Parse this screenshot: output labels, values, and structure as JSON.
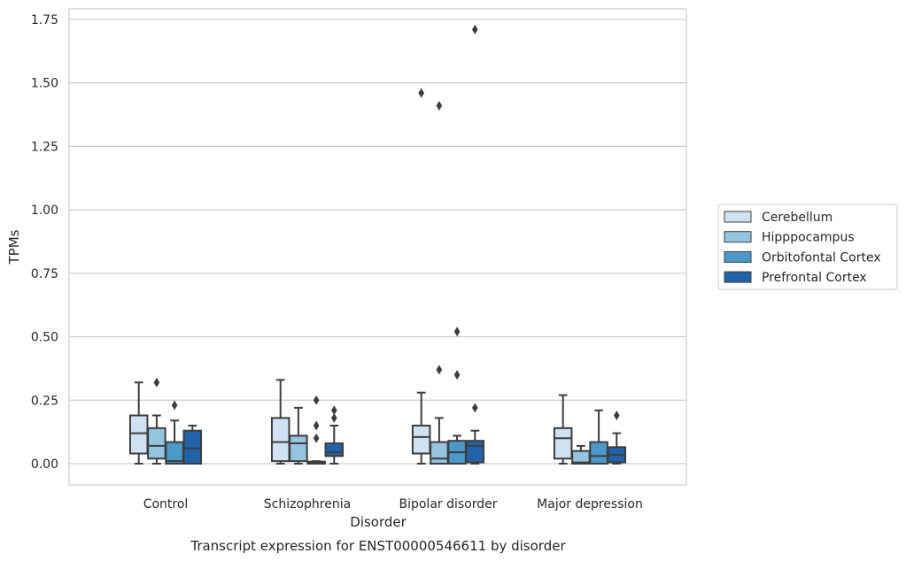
{
  "caption": "Transcript expression for ENST00000546611 by disorder",
  "chart_data": {
    "type": "box",
    "title": "",
    "xlabel": "Disorder",
    "ylabel": "TPMs",
    "categories": [
      "Control",
      "Schizophrenia",
      "Bipolar disorder",
      "Major depression"
    ],
    "ylim": [
      -0.085,
      1.8
    ],
    "yticks": [
      0.0,
      0.25,
      0.5,
      0.75,
      1.0,
      1.25,
      1.5,
      1.75
    ],
    "ytick_labels": [
      "0.00",
      "0.25",
      "0.50",
      "0.75",
      "1.00",
      "1.25",
      "1.50",
      "1.75"
    ],
    "grid": true,
    "legend_position": "right",
    "series": [
      {
        "name": "Cerebellum",
        "color": "#d0e1f2",
        "boxes": [
          {
            "whislo": 0.0,
            "q1": 0.04,
            "med": 0.12,
            "q3": 0.19,
            "whishi": 0.32,
            "fliers": []
          },
          {
            "whislo": 0.0,
            "q1": 0.01,
            "med": 0.085,
            "q3": 0.18,
            "whishi": 0.33,
            "fliers": []
          },
          {
            "whislo": 0.0,
            "q1": 0.04,
            "med": 0.105,
            "q3": 0.15,
            "whishi": 0.28,
            "fliers": [
              1.46
            ]
          },
          {
            "whislo": 0.0,
            "q1": 0.02,
            "med": 0.1,
            "q3": 0.14,
            "whishi": 0.27,
            "fliers": []
          }
        ]
      },
      {
        "name": "Hipppocampus",
        "color": "#94c4df",
        "boxes": [
          {
            "whislo": 0.0,
            "q1": 0.02,
            "med": 0.07,
            "q3": 0.14,
            "whishi": 0.19,
            "fliers": [
              0.32
            ]
          },
          {
            "whislo": 0.0,
            "q1": 0.01,
            "med": 0.08,
            "q3": 0.11,
            "whishi": 0.22,
            "fliers": []
          },
          {
            "whislo": 0.0,
            "q1": 0.0,
            "med": 0.02,
            "q3": 0.085,
            "whishi": 0.18,
            "fliers": [
              0.37,
              1.41
            ]
          },
          {
            "whislo": 0.0,
            "q1": 0.0,
            "med": 0.005,
            "q3": 0.05,
            "whishi": 0.07,
            "fliers": []
          }
        ]
      },
      {
        "name": "Orbitofontal Cortex",
        "color": "#4b98c9",
        "boxes": [
          {
            "whislo": 0.0,
            "q1": 0.0,
            "med": 0.01,
            "q3": 0.085,
            "whishi": 0.17,
            "fliers": [
              0.23
            ]
          },
          {
            "whislo": 0.0,
            "q1": 0.0,
            "med": 0.003,
            "q3": 0.008,
            "whishi": 0.01,
            "fliers": [
              0.1,
              0.15,
              0.25
            ]
          },
          {
            "whislo": 0.0,
            "q1": 0.0,
            "med": 0.045,
            "q3": 0.09,
            "whishi": 0.11,
            "fliers": [
              0.35,
              0.52
            ]
          },
          {
            "whislo": 0.0,
            "q1": 0.0,
            "med": 0.03,
            "q3": 0.085,
            "whishi": 0.21,
            "fliers": []
          }
        ]
      },
      {
        "name": "Prefrontal Cortex",
        "color": "#2163aa",
        "boxes": [
          {
            "whislo": 0.0,
            "q1": 0.0,
            "med": 0.06,
            "q3": 0.13,
            "whishi": 0.15,
            "fliers": []
          },
          {
            "whislo": 0.0,
            "q1": 0.03,
            "med": 0.045,
            "q3": 0.08,
            "whishi": 0.15,
            "fliers": [
              0.18,
              0.21
            ]
          },
          {
            "whislo": 0.0,
            "q1": 0.005,
            "med": 0.07,
            "q3": 0.09,
            "whishi": 0.13,
            "fliers": [
              0.22,
              1.71
            ]
          },
          {
            "whislo": 0.0,
            "q1": 0.005,
            "med": 0.035,
            "q3": 0.065,
            "whishi": 0.12,
            "fliers": [
              0.19
            ]
          }
        ]
      }
    ]
  }
}
